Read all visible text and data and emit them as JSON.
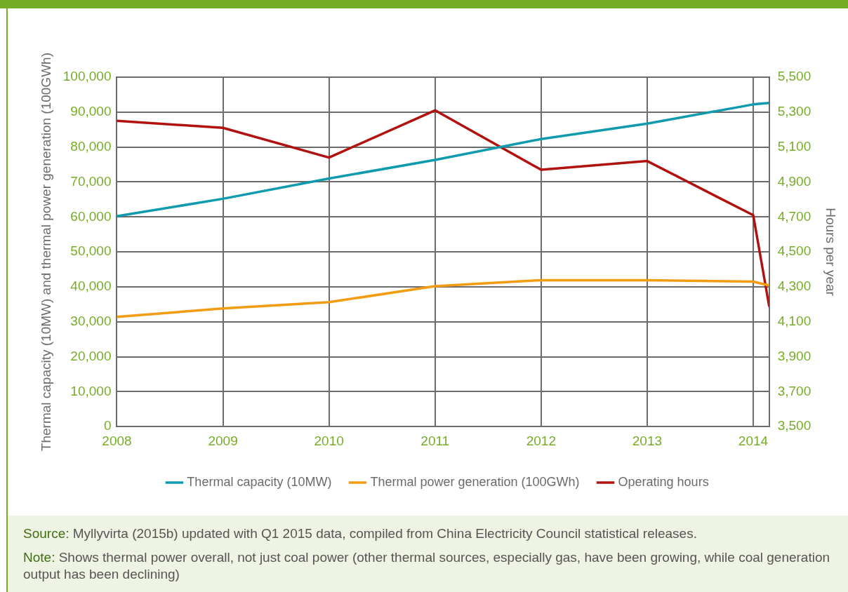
{
  "chart_data": {
    "type": "line",
    "ylabel": "Thermal capacity (10MW) and thermal power generation (100GWh)",
    "y2label": "Hours per year",
    "xlim": [
      2008,
      2014.15
    ],
    "xticks": [
      2008,
      2009,
      2010,
      2011,
      2012,
      2013,
      2014
    ],
    "ylim": [
      0,
      100000
    ],
    "yticks": [
      0,
      {
        "value": 10000,
        "label": "10,000"
      },
      {
        "value": 20000,
        "label": "20,000"
      },
      {
        "value": 30000,
        "label": "30,000"
      },
      {
        "value": 40000,
        "label": "40,000"
      },
      {
        "value": 50000,
        "label": "50,000"
      },
      {
        "value": 60000,
        "label": "60,000"
      },
      {
        "value": 70000,
        "label": "70,000"
      },
      {
        "value": 80000,
        "label": "80,000"
      },
      {
        "value": 90000,
        "label": "90,000"
      },
      {
        "value": 100000,
        "label": "100,000"
      }
    ],
    "y2lim": [
      3500,
      5500
    ],
    "y2ticks": [
      {
        "value": 3500,
        "label": "3,500"
      },
      {
        "value": 3700,
        "label": "3,700"
      },
      {
        "value": 3900,
        "label": "3,900"
      },
      {
        "value": 4100,
        "label": "4,100"
      },
      {
        "value": 4300,
        "label": "4,300"
      },
      {
        "value": 4500,
        "label": "4,500"
      },
      {
        "value": 4700,
        "label": "4,700"
      },
      {
        "value": 4900,
        "label": "4,900"
      },
      {
        "value": 5100,
        "label": "5,100"
      },
      {
        "value": 5300,
        "label": "5,300"
      },
      {
        "value": 5500,
        "label": "5,500"
      }
    ],
    "grid": true,
    "legend": "bottom",
    "marker": "none",
    "line_style": "solid",
    "series": [
      {
        "name": "Thermal capacity (10MW)",
        "color": "#0f9aad",
        "x": [
          2008,
          2009,
          2010,
          2011,
          2012,
          2013,
          2014,
          2014.15
        ],
        "values": [
          60200,
          65200,
          71000,
          76300,
          82300,
          86700,
          92200,
          92600
        ]
      },
      {
        "name": "Thermal power generation (100GWh)",
        "color": "#f39c12",
        "x": [
          2008,
          2009,
          2010,
          2011,
          2012,
          2013,
          2014,
          2014.15
        ],
        "values": [
          31400,
          33800,
          35600,
          40200,
          41900,
          41900,
          41500,
          40400
        ]
      },
      {
        "name": "Operating hours",
        "color": "#b0120f",
        "axis": "y2",
        "x": [
          2008,
          2009,
          2010,
          2011,
          2012,
          2013,
          2014,
          2014.15
        ],
        "values": [
          5250,
          5210,
          5040,
          5310,
          4970,
          5020,
          4710,
          4190
        ]
      }
    ],
    "annotations": [
      "Source: Myllyvirta (2015b) updated with Q1 2015 data, compiled from China Electricity Council statistical releases.",
      "Note: Shows thermal power overall, not just coal power (other thermal sources, especially gas, have been growing, while coal generation output has been declining)"
    ]
  }
}
